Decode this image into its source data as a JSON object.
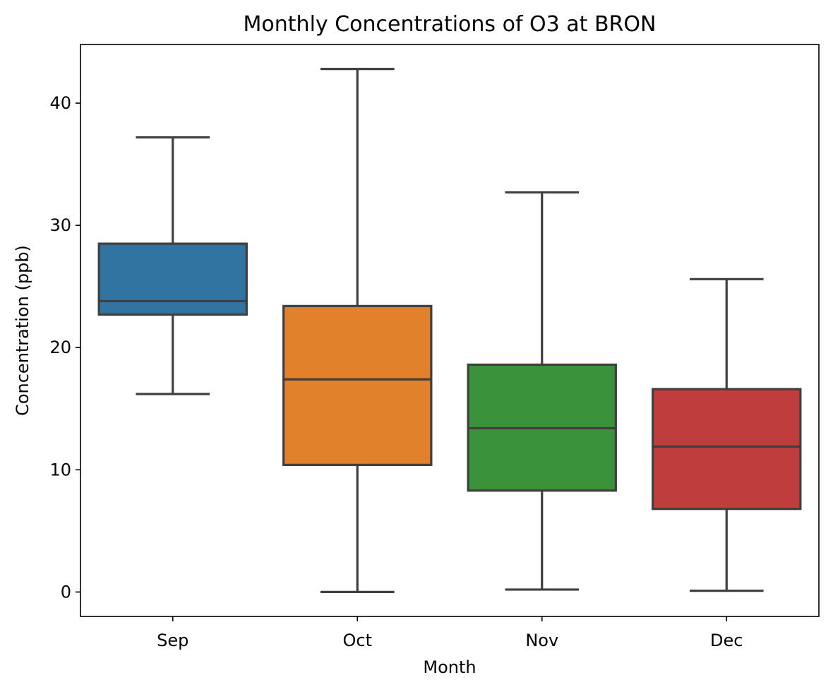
{
  "chart_data": {
    "type": "box",
    "title": "Monthly Concentrations of O3 at BRON",
    "xlabel": "Month",
    "ylabel": "Concentration (ppb)",
    "ylim": [
      -2,
      44.8
    ],
    "yticks": [
      0,
      10,
      20,
      30,
      40
    ],
    "categories": [
      "Sep",
      "Oct",
      "Nov",
      "Dec"
    ],
    "boxes": [
      {
        "category": "Sep",
        "whisker_low": 16.2,
        "q1": 22.7,
        "median": 23.8,
        "q3": 28.5,
        "whisker_high": 37.2,
        "color": "#3274a1"
      },
      {
        "category": "Oct",
        "whisker_low": 0.0,
        "q1": 10.4,
        "median": 17.4,
        "q3": 23.4,
        "whisker_high": 42.8,
        "color": "#e1812c"
      },
      {
        "category": "Nov",
        "whisker_low": 0.2,
        "q1": 8.3,
        "median": 13.4,
        "q3": 18.6,
        "whisker_high": 32.7,
        "color": "#3a923a"
      },
      {
        "category": "Dec",
        "whisker_low": 0.1,
        "q1": 6.8,
        "median": 11.9,
        "q3": 16.6,
        "whisker_high": 25.6,
        "color": "#c03d3e"
      }
    ],
    "grid": false,
    "legend": "none"
  }
}
